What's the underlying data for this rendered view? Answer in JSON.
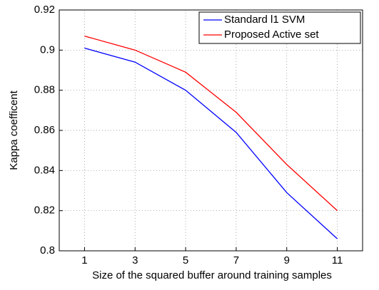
{
  "chart_data": {
    "type": "line",
    "x_label": "Size of the squared buffer around training samples",
    "y_label": "Kappa coefficent",
    "x": [
      1,
      3,
      5,
      7,
      9,
      11
    ],
    "series": [
      {
        "name": "Standard l1 SVM",
        "color": "#0000ff",
        "values": [
          0.901,
          0.894,
          0.88,
          0.859,
          0.829,
          0.806
        ]
      },
      {
        "name": "Proposed Active set",
        "color": "#ff0000",
        "values": [
          0.907,
          0.9,
          0.889,
          0.869,
          0.843,
          0.82
        ]
      }
    ],
    "xlim": [
      0,
      12
    ],
    "xticks": [
      1,
      3,
      5,
      7,
      9,
      11
    ],
    "ylim": [
      0.8,
      0.92
    ],
    "yticks": [
      0.8,
      0.82,
      0.84,
      0.86,
      0.88,
      0.9,
      0.92
    ],
    "grid": true,
    "legend": "top-right"
  }
}
